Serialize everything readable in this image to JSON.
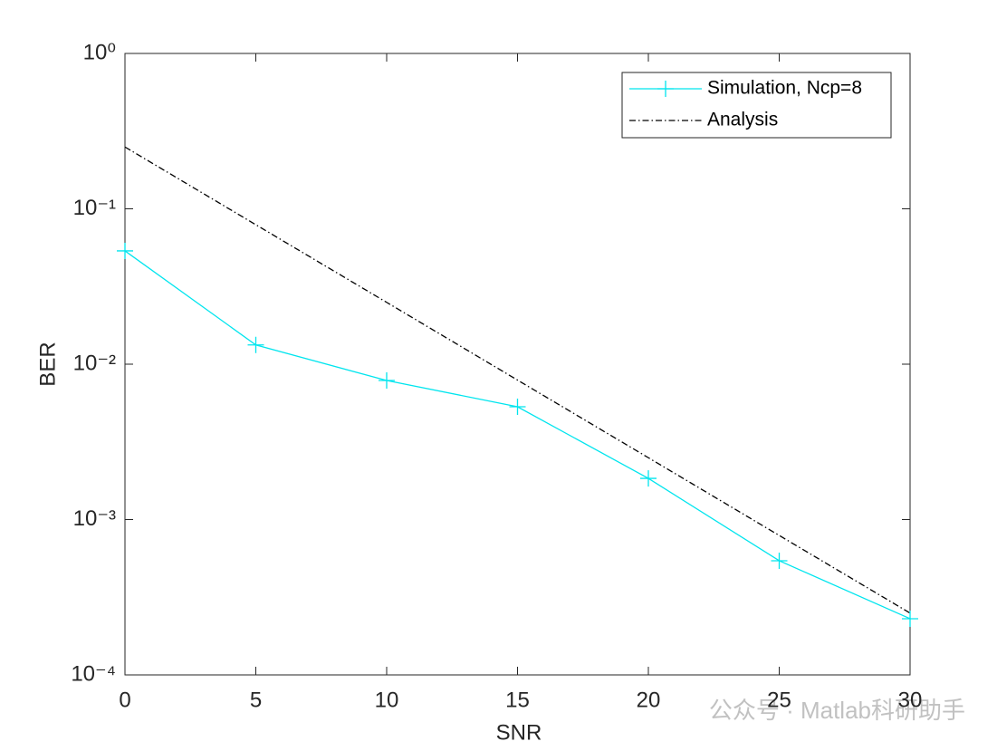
{
  "chart_data": {
    "type": "line",
    "xlabel": "SNR",
    "ylabel": "BER",
    "x": [
      0,
      5,
      10,
      15,
      20,
      25,
      30
    ],
    "series": [
      {
        "name": "Simulation, Ncp=8",
        "color": "#00e5ee",
        "style": "solid",
        "marker": "+",
        "values": [
          0.0536,
          0.0133,
          0.00785,
          0.00532,
          0.00184,
          0.000543,
          0.00023
        ]
      },
      {
        "name": "Analysis",
        "color": "#000000",
        "style": "dashdot",
        "values": [
          0.25,
          0.079,
          0.025,
          0.0079,
          0.0025,
          0.00079,
          0.00025
        ]
      }
    ],
    "xlim": [
      0,
      30
    ],
    "xticks": [
      0,
      5,
      10,
      15,
      20,
      25,
      30
    ],
    "ylim": [
      0.0001,
      1
    ],
    "log_y": true,
    "yticks": [
      {
        "value": 0.0001,
        "label": "10⁻⁴"
      },
      {
        "value": 0.001,
        "label": "10⁻³"
      },
      {
        "value": 0.01,
        "label": "10⁻²"
      },
      {
        "value": 0.1,
        "label": "10⁻¹"
      },
      {
        "value": 1,
        "label": "10⁰"
      }
    ],
    "legend": "northeast",
    "watermark": "公众号 · Matlab科研助手"
  }
}
